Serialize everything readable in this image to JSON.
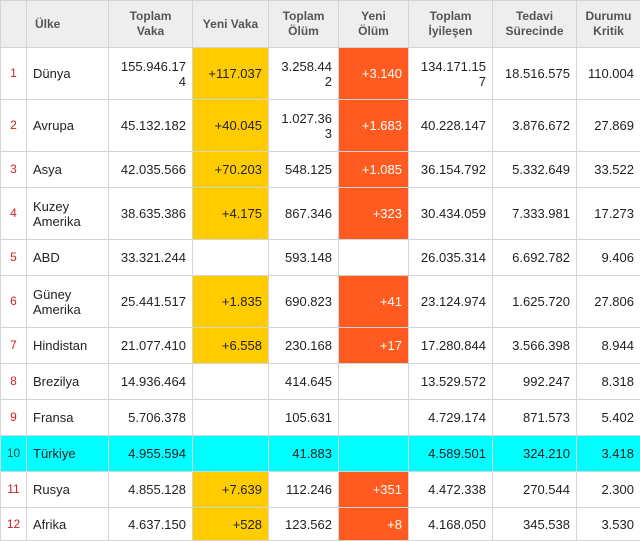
{
  "headers": {
    "rank": "",
    "country": "Ülke",
    "total_cases": "Toplam Vaka",
    "new_cases": "Yeni Vaka",
    "total_deaths": "Toplam Ölüm",
    "new_deaths": "Yeni Ölüm",
    "total_recovered": "Toplam İyileşen",
    "active": "Tedavi Sürecinde",
    "critical": "Durumu Kritik"
  },
  "colors": {
    "new_case_highlight": "#ffcc00",
    "new_death_highlight": "#ff5a1f",
    "selected_row": "#00ffff",
    "rank_text": "#cc2222"
  },
  "rows": [
    {
      "rank": "1",
      "country": "Dünya",
      "total_cases": "155.946.174",
      "new_cases": "+117.037",
      "total_deaths": "3.258.442",
      "new_deaths": "+3.140",
      "total_recovered": "134.171.157",
      "active": "18.516.575",
      "critical": "110.004"
    },
    {
      "rank": "2",
      "country": "Avrupa",
      "total_cases": "45.132.182",
      "new_cases": "+40.045",
      "total_deaths": "1.027.363",
      "new_deaths": "+1.683",
      "total_recovered": "40.228.147",
      "active": "3.876.672",
      "critical": "27.869"
    },
    {
      "rank": "3",
      "country": "Asya",
      "total_cases": "42.035.566",
      "new_cases": "+70.203",
      "total_deaths": "548.125",
      "new_deaths": "+1.085",
      "total_recovered": "36.154.792",
      "active": "5.332.649",
      "critical": "33.522"
    },
    {
      "rank": "4",
      "country": "Kuzey Amerika",
      "total_cases": "38.635.386",
      "new_cases": "+4.175",
      "total_deaths": "867.346",
      "new_deaths": "+323",
      "total_recovered": "30.434.059",
      "active": "7.333.981",
      "critical": "17.273"
    },
    {
      "rank": "5",
      "country": "ABD",
      "total_cases": "33.321.244",
      "new_cases": "",
      "total_deaths": "593.148",
      "new_deaths": "",
      "total_recovered": "26.035.314",
      "active": "6.692.782",
      "critical": "9.406"
    },
    {
      "rank": "6",
      "country": "Güney Amerika",
      "total_cases": "25.441.517",
      "new_cases": "+1.835",
      "total_deaths": "690.823",
      "new_deaths": "+41",
      "total_recovered": "23.124.974",
      "active": "1.625.720",
      "critical": "27.806"
    },
    {
      "rank": "7",
      "country": "Hindistan",
      "total_cases": "21.077.410",
      "new_cases": "+6.558",
      "total_deaths": "230.168",
      "new_deaths": "+17",
      "total_recovered": "17.280.844",
      "active": "3.566.398",
      "critical": "8.944"
    },
    {
      "rank": "8",
      "country": "Brezilya",
      "total_cases": "14.936.464",
      "new_cases": "",
      "total_deaths": "414.645",
      "new_deaths": "",
      "total_recovered": "13.529.572",
      "active": "992.247",
      "critical": "8.318"
    },
    {
      "rank": "9",
      "country": "Fransa",
      "total_cases": "5.706.378",
      "new_cases": "",
      "total_deaths": "105.631",
      "new_deaths": "",
      "total_recovered": "4.729.174",
      "active": "871.573",
      "critical": "5.402"
    },
    {
      "rank": "10",
      "country": "Türkiye",
      "total_cases": "4.955.594",
      "new_cases": "",
      "total_deaths": "41.883",
      "new_deaths": "",
      "total_recovered": "4.589.501",
      "active": "324.210",
      "critical": "3.418",
      "highlight": true
    },
    {
      "rank": "11",
      "country": "Rusya",
      "total_cases": "4.855.128",
      "new_cases": "+7.639",
      "total_deaths": "112.246",
      "new_deaths": "+351",
      "total_recovered": "4.472.338",
      "active": "270.544",
      "critical": "2.300"
    },
    {
      "rank": "12",
      "country": "Afrika",
      "total_cases": "4.637.150",
      "new_cases": "+528",
      "total_deaths": "123.562",
      "new_deaths": "+8",
      "total_recovered": "4.168.050",
      "active": "345.538",
      "critical": "3.530"
    }
  ]
}
